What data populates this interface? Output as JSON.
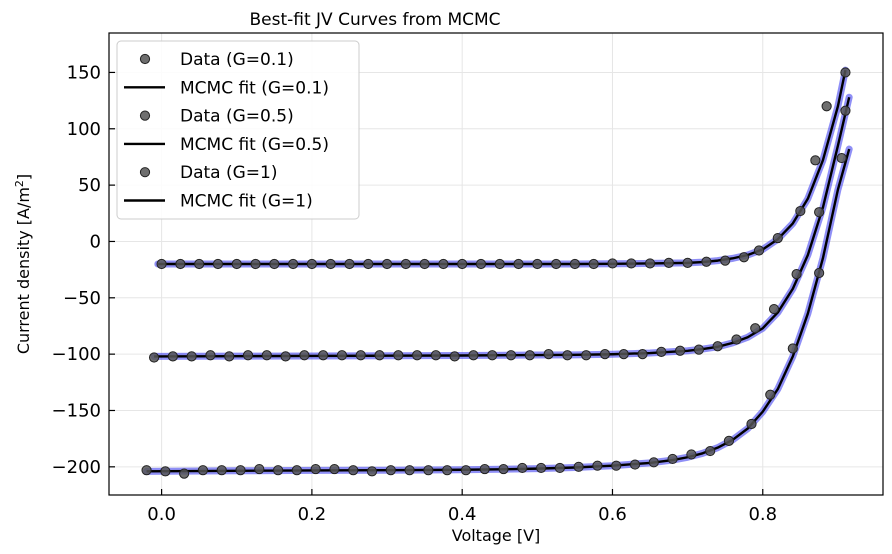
{
  "chart_data": {
    "type": "scatter",
    "title": "Best-fit JV Curves from MCMC",
    "xlabel": "Voltage [V]",
    "ylabel_main": "Current density [A/m",
    "ylabel_sup": "2",
    "ylabel_end": "]",
    "xlim": [
      -0.07,
      0.96
    ],
    "ylim": [
      -225,
      185
    ],
    "xticks": [
      0.0,
      0.2,
      0.4,
      0.6,
      0.8
    ],
    "xtick_labels": [
      "0.0",
      "0.2",
      "0.4",
      "0.6",
      "0.8"
    ],
    "yticks": [
      -200,
      -150,
      -100,
      -50,
      0,
      50,
      100,
      150
    ],
    "ytick_labels": [
      "−200",
      "−150",
      "−100",
      "−50",
      "0",
      "50",
      "100",
      "150"
    ],
    "grid": true,
    "legend_position": "top-left",
    "legend": [
      {
        "label": "Data (G=0.1)",
        "kind": "marker"
      },
      {
        "label": "MCMC fit (G=0.1)",
        "kind": "line"
      },
      {
        "label": "Data (G=0.5)",
        "kind": "marker"
      },
      {
        "label": "MCMC fit (G=0.5)",
        "kind": "line"
      },
      {
        "label": "Data (G=1)",
        "kind": "marker"
      },
      {
        "label": "MCMC fit (G=1)",
        "kind": "line"
      }
    ],
    "colors": {
      "data_marker": "#555555",
      "fit_line": "#000000",
      "mcmc_band": "#3333ee"
    },
    "series": [
      {
        "name": "Data (G=0.1)",
        "x": [
          0.0,
          0.025,
          0.05,
          0.075,
          0.1,
          0.125,
          0.15,
          0.175,
          0.2,
          0.225,
          0.25,
          0.275,
          0.3,
          0.325,
          0.35,
          0.375,
          0.4,
          0.425,
          0.45,
          0.475,
          0.5,
          0.525,
          0.55,
          0.575,
          0.6,
          0.625,
          0.65,
          0.675,
          0.7,
          0.725,
          0.75,
          0.775,
          0.795,
          0.82,
          0.85,
          0.87,
          0.885,
          0.91
        ],
        "y": [
          -20,
          -20,
          -20,
          -20,
          -20,
          -20,
          -20,
          -20,
          -20,
          -20,
          -20,
          -20,
          -20,
          -20,
          -20,
          -20,
          -20,
          -20,
          -20,
          -20,
          -20,
          -20,
          -20,
          -20,
          -19.5,
          -19.5,
          -19.5,
          -19,
          -19,
          -18,
          -17,
          -14,
          -8,
          3,
          27,
          72,
          120,
          150
        ]
      },
      {
        "name": "MCMC fit (G=0.1)",
        "x": [
          -0.005,
          0.1,
          0.2,
          0.3,
          0.4,
          0.5,
          0.55,
          0.6,
          0.65,
          0.7,
          0.72,
          0.74,
          0.76,
          0.78,
          0.8,
          0.82,
          0.84,
          0.86,
          0.88,
          0.9,
          0.91
        ],
        "y": [
          -20,
          -20,
          -20,
          -20,
          -20,
          -20,
          -20,
          -19.8,
          -19.5,
          -19,
          -18.3,
          -17,
          -15,
          -12,
          -7,
          2,
          16,
          38,
          72,
          120,
          152
        ]
      },
      {
        "name": "Data (G=0.5)",
        "x": [
          -0.01,
          0.015,
          0.04,
          0.065,
          0.09,
          0.115,
          0.14,
          0.165,
          0.19,
          0.215,
          0.24,
          0.265,
          0.29,
          0.315,
          0.34,
          0.365,
          0.39,
          0.415,
          0.44,
          0.465,
          0.49,
          0.515,
          0.54,
          0.565,
          0.59,
          0.615,
          0.64,
          0.665,
          0.69,
          0.715,
          0.74,
          0.765,
          0.79,
          0.815,
          0.845,
          0.875,
          0.91
        ],
        "y": [
          -103,
          -102,
          -102,
          -101,
          -102,
          -101,
          -101,
          -102,
          -101,
          -101,
          -101,
          -101,
          -101,
          -101,
          -101,
          -101,
          -102,
          -101,
          -101,
          -101,
          -101,
          -100,
          -101,
          -101,
          -100,
          -100,
          -100,
          -98,
          -97,
          -96,
          -93,
          -87,
          -77,
          -60,
          -29,
          26,
          116
        ]
      },
      {
        "name": "MCMC fit (G=0.5)",
        "x": [
          -0.01,
          0.1,
          0.2,
          0.3,
          0.4,
          0.5,
          0.55,
          0.6,
          0.65,
          0.7,
          0.72,
          0.74,
          0.76,
          0.78,
          0.8,
          0.82,
          0.84,
          0.86,
          0.88,
          0.9,
          0.915
        ],
        "y": [
          -102,
          -101.8,
          -101.6,
          -101.4,
          -101.2,
          -100.8,
          -100.6,
          -100.1,
          -99,
          -97,
          -95.5,
          -93.5,
          -90,
          -85,
          -77,
          -63,
          -42,
          -12,
          30,
          85,
          128
        ]
      },
      {
        "name": "Data (G=1)",
        "x": [
          -0.02,
          0.005,
          0.03,
          0.055,
          0.08,
          0.105,
          0.13,
          0.155,
          0.18,
          0.205,
          0.23,
          0.255,
          0.28,
          0.305,
          0.33,
          0.355,
          0.38,
          0.405,
          0.43,
          0.455,
          0.48,
          0.505,
          0.53,
          0.555,
          0.58,
          0.605,
          0.63,
          0.655,
          0.68,
          0.705,
          0.73,
          0.755,
          0.785,
          0.81,
          0.84,
          0.875,
          0.905
        ],
        "y": [
          -203,
          -204,
          -206,
          -203,
          -203,
          -203,
          -202,
          -203,
          -203,
          -202,
          -202,
          -203,
          -204,
          -203,
          -203,
          -203,
          -203,
          -203,
          -202,
          -202,
          -201,
          -201,
          -201,
          -200,
          -199,
          -199,
          -198,
          -196,
          -193,
          -189,
          -186,
          -177,
          -162,
          -136,
          -95,
          -28,
          74
        ]
      },
      {
        "name": "MCMC fit (G=1)",
        "x": [
          -0.02,
          0.1,
          0.2,
          0.3,
          0.4,
          0.45,
          0.5,
          0.55,
          0.6,
          0.65,
          0.68,
          0.7,
          0.72,
          0.74,
          0.76,
          0.78,
          0.8,
          0.82,
          0.84,
          0.86,
          0.88,
          0.9,
          0.915
        ],
        "y": [
          -204,
          -203.5,
          -203.2,
          -203,
          -202.6,
          -202.2,
          -201.6,
          -200.6,
          -199,
          -196.5,
          -194,
          -191.5,
          -188,
          -183,
          -176,
          -166,
          -151,
          -131,
          -102,
          -64,
          -15,
          46,
          82
        ]
      }
    ]
  }
}
